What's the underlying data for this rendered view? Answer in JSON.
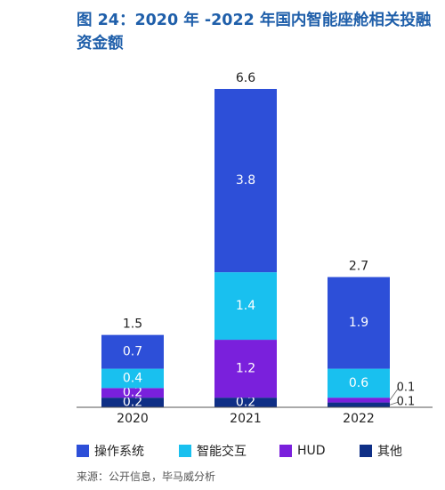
{
  "title": "图 24：2020 年 -2022 年国内智能座舱相关投融资金额",
  "source": "来源：公开信息，毕马威分析",
  "chart_data": {
    "type": "bar",
    "stacked": true,
    "categories": [
      "2020",
      "2021",
      "2022"
    ],
    "totals": [
      1.5,
      6.6,
      2.7
    ],
    "series": [
      {
        "name": "其他",
        "color": "#0f2f86",
        "values": [
          0.2,
          0.2,
          0.1
        ],
        "labels": [
          "0.2",
          "0.2",
          "0.1"
        ]
      },
      {
        "name": "HUD",
        "color": "#7a20dc",
        "values": [
          0.2,
          1.2,
          0.1
        ],
        "labels": [
          "0.2",
          "1.2",
          "0.1"
        ]
      },
      {
        "name": "智能交互",
        "color": "#19c0ef",
        "values": [
          0.4,
          1.4,
          0.6
        ],
        "labels": [
          "0.4",
          "1.4",
          "0.6"
        ]
      },
      {
        "name": "操作系统",
        "color": "#2d4fd8",
        "values": [
          0.7,
          3.8,
          1.9
        ],
        "labels": [
          "0.7",
          "3.8",
          "1.9"
        ]
      }
    ],
    "legend_order": [
      "操作系统",
      "智能交互",
      "HUD",
      "其他"
    ],
    "legend_position": "bottom",
    "ylim": [
      0,
      6.6
    ]
  }
}
